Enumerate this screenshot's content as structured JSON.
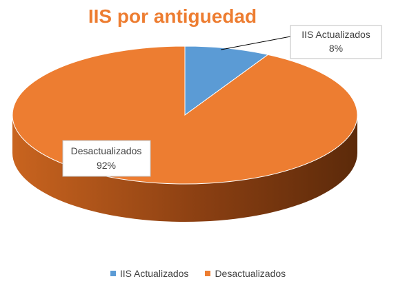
{
  "chart_data": {
    "type": "pie",
    "title": "IIS por antiguedad",
    "categories": [
      "IIS Actualizados",
      "Desactualizados"
    ],
    "values": [
      8,
      92
    ],
    "data_labels": [
      {
        "category": "IIS Actualizados",
        "percent": "8%"
      },
      {
        "category": "Desactualizados",
        "percent": "92%"
      }
    ],
    "colors": [
      "#5b9bd5",
      "#ed7d31"
    ],
    "side_color": "#8a3f12",
    "legend": "bottom",
    "style": "3d"
  }
}
